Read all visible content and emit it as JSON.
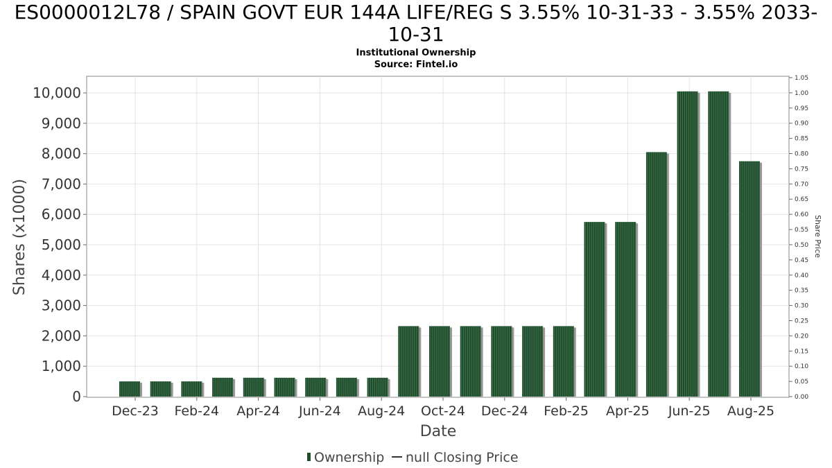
{
  "chart_data": {
    "type": "bar",
    "title_line1": "ES0000012L78 / SPAIN GOVT EUR 144A LIFE/REG S 3.55% 10-31-33 - 3.55% 2033-",
    "title_line2": "10-31",
    "subtitle_line1": "Institutional Ownership",
    "subtitle_line2": "Source: Fintel.io",
    "xlabel": "Date",
    "ylabel": "Shares (x1000)",
    "y2label": "Share Price",
    "ylim": [
      0,
      10500
    ],
    "y2lim": [
      0,
      1.05
    ],
    "yticks": [
      "0",
      "1,000",
      "2,000",
      "3,000",
      "4,000",
      "5,000",
      "6,000",
      "7,000",
      "8,000",
      "9,000",
      "10,000"
    ],
    "y2ticks": [
      "0.00",
      "0.05",
      "0.10",
      "0.15",
      "0.20",
      "0.25",
      "0.30",
      "0.35",
      "0.40",
      "0.45",
      "0.50",
      "0.55",
      "0.60",
      "0.65",
      "0.70",
      "0.75",
      "0.80",
      "0.85",
      "0.90",
      "0.95",
      "1.00",
      "1.05"
    ],
    "xticks": [
      "Dec-23",
      "Feb-24",
      "Apr-24",
      "Jun-24",
      "Aug-24",
      "Oct-24",
      "Dec-24",
      "Feb-25",
      "Apr-25",
      "Jun-25",
      "Aug-25"
    ],
    "series": [
      {
        "name": "Ownership",
        "color": "#1e4d2b",
        "values": [
          500,
          500,
          500,
          620,
          620,
          620,
          620,
          620,
          620,
          2320,
          2320,
          2320,
          2320,
          2320,
          2320,
          5750,
          5750,
          8050,
          10050,
          10050,
          7750
        ]
      }
    ],
    "legend": [
      {
        "label": "Ownership",
        "marker": "bar",
        "color": "#1e4d2b"
      },
      {
        "label": "null Closing Price",
        "marker": "line",
        "color": "#333333"
      }
    ],
    "legend_position": "bottom",
    "grid": true
  }
}
